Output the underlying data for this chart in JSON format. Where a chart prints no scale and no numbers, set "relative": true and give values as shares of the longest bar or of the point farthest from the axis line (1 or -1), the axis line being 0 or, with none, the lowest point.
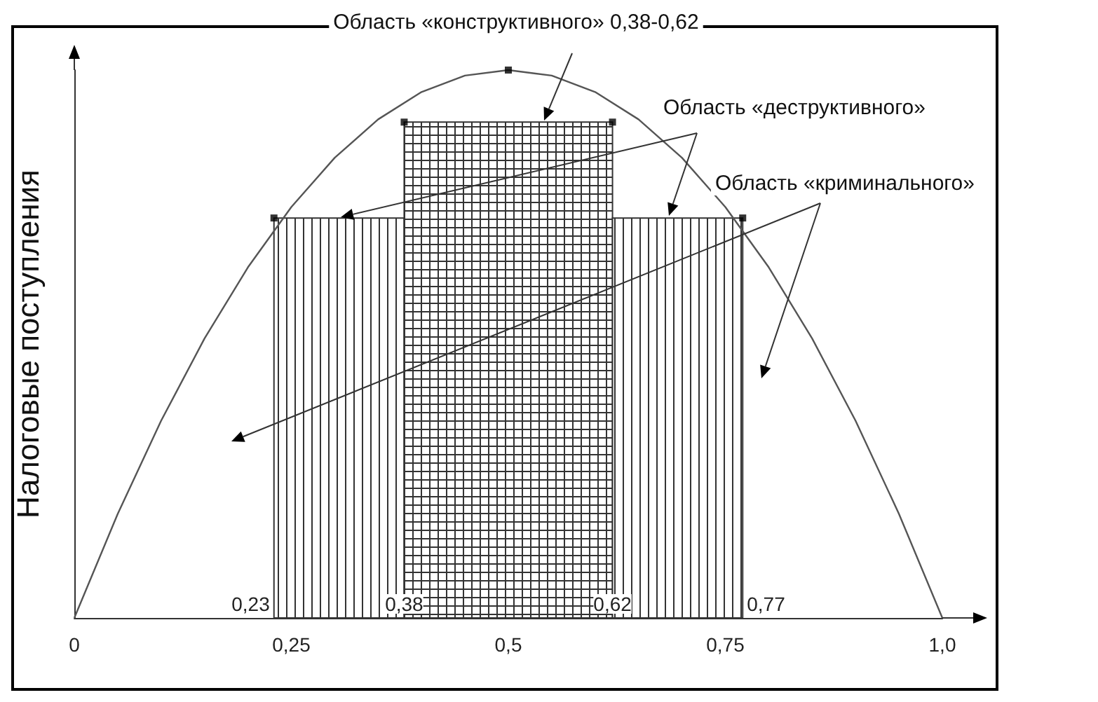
{
  "chart_data": {
    "type": "histogram",
    "bins": [
      0.23,
      0.38,
      0.62,
      0.77
    ],
    "values": [
      0.73,
      0.905,
      0.73
    ],
    "colors": [
      "#333333",
      "#333333",
      "#333333"
    ],
    "relative": true,
    "ylabel": "Налоговые поступления",
    "xlim": [
      0,
      1
    ],
    "xticks": [
      0,
      {
        "value": 0.25,
        "label": "0,25"
      },
      {
        "value": 0.5,
        "label": "0,5"
      },
      {
        "value": 0.75,
        "label": "0,75"
      },
      {
        "value": 1,
        "label": "1,0"
      }
    ],
    "grid": false,
    "annotations": [
      "Область «конструктивного» 0,38-0,62",
      "Область «деструктивного»",
      "Область «криминального»",
      {
        "text": "0,23",
        "x": 0.23,
        "y": 0
      },
      {
        "text": "0,38",
        "x": 0.38,
        "y": 0
      },
      {
        "text": "0,62",
        "x": 0.62,
        "y": 0
      },
      {
        "text": "0,77",
        "x": 0.77,
        "y": 0
      }
    ],
    "series": [
      {
        "type": "line",
        "color": "#555555",
        "marker": "none",
        "x": [
          0,
          0.05,
          0.1,
          0.15,
          0.2,
          0.25,
          0.3,
          0.35,
          0.4,
          0.45,
          0.5,
          0.55,
          0.6,
          0.65,
          0.7,
          0.75,
          0.8,
          0.85,
          0.9,
          0.95,
          1
        ],
        "values": [
          0,
          0.19,
          0.36,
          0.51,
          0.64,
          0.75,
          0.84,
          0.91,
          0.96,
          0.99,
          1,
          0.99,
          0.96,
          0.91,
          0.84,
          0.75,
          0.64,
          0.51,
          0.36,
          0.19,
          0
        ]
      },
      {
        "type": "scatter",
        "marker": "square",
        "color": "#000000",
        "x": [
          0.23,
          0.38,
          0.5,
          0.62,
          0.77
        ],
        "values": [
          0.73,
          0.905,
          1,
          0.905,
          0.73
        ]
      }
    ]
  }
}
